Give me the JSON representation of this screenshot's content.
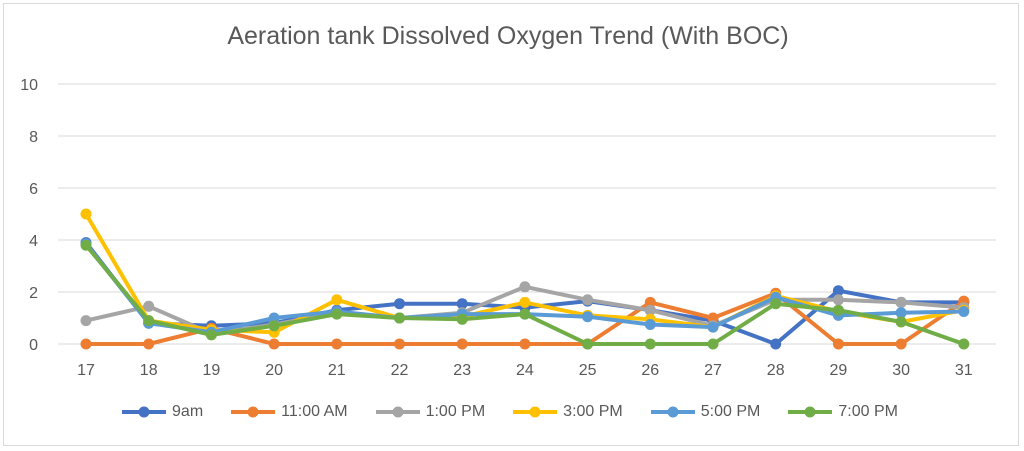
{
  "chart_data": {
    "type": "line",
    "title": "Aeration tank Dissolved Oxygen Trend (With BOC)",
    "xlabel": "",
    "ylabel": "",
    "ylim": [
      0,
      10
    ],
    "yticks": [
      "0",
      "2",
      "4",
      "6",
      "8",
      "10"
    ],
    "categories": [
      "17",
      "18",
      "19",
      "20",
      "21",
      "22",
      "23",
      "24",
      "25",
      "26",
      "27",
      "28",
      "29",
      "30",
      "31"
    ],
    "grid": true,
    "legend_position": "bottom",
    "series": [
      {
        "name": "9am",
        "color": "#4472c4",
        "values": [
          3.9,
          0.8,
          0.7,
          0.8,
          1.3,
          1.55,
          1.55,
          1.4,
          1.65,
          1.3,
          0.9,
          0.0,
          2.05,
          1.6,
          1.6
        ]
      },
      {
        "name": "11:00 AM",
        "color": "#ed7d31",
        "values": [
          0.0,
          0.0,
          0.6,
          0.0,
          0.0,
          0.0,
          0.0,
          0.0,
          0.0,
          1.6,
          1.0,
          1.95,
          0.0,
          0.0,
          1.65
        ]
      },
      {
        "name": "1:00 PM",
        "color": "#a5a5a5",
        "values": [
          0.9,
          1.45,
          0.4,
          0.75,
          1.2,
          1.0,
          1.2,
          2.2,
          1.7,
          1.3,
          0.7,
          1.7,
          1.7,
          1.6,
          1.4
        ]
      },
      {
        "name": "3:00 PM",
        "color": "#ffc000",
        "values": [
          5.0,
          0.9,
          0.55,
          0.45,
          1.7,
          1.0,
          1.05,
          1.6,
          1.1,
          0.95,
          0.65,
          1.85,
          1.25,
          0.85,
          1.3
        ]
      },
      {
        "name": "5:00 PM",
        "color": "#5b9bd5",
        "values": [
          3.85,
          0.8,
          0.45,
          1.0,
          1.25,
          1.0,
          1.15,
          1.15,
          1.05,
          0.75,
          0.65,
          1.8,
          1.1,
          1.2,
          1.25
        ]
      },
      {
        "name": "7:00 PM",
        "color": "#70ad47",
        "values": [
          3.8,
          0.9,
          0.35,
          0.7,
          1.15,
          1.0,
          0.95,
          1.15,
          0.0,
          0.0,
          0.0,
          1.55,
          1.3,
          0.85,
          0.0
        ]
      }
    ]
  }
}
